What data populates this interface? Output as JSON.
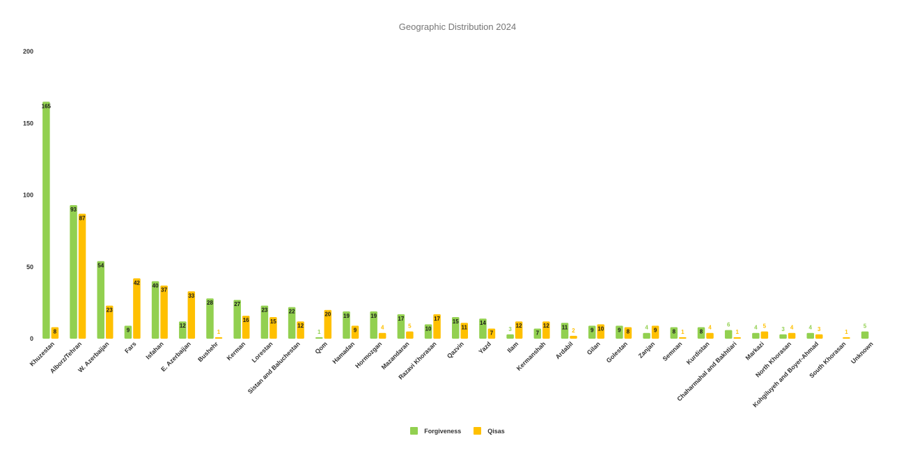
{
  "chart_data": {
    "type": "bar",
    "title": "Geographic Distribution 2024",
    "xlabel": "",
    "ylabel": "",
    "ylim": [
      0,
      200
    ],
    "yticks": [
      0,
      50,
      100,
      150,
      200
    ],
    "grid": false,
    "legend_position": "bottom",
    "categories": [
      "Khuzestan",
      "Alborz/Tehran",
      "W. Azerbaijan",
      "Fars",
      "Isfahan",
      "E. Azerbaijan",
      "Bushehr",
      "Kerman",
      "Lorestan",
      "Sistan and Baluchestan",
      "Qom",
      "Hamadan",
      "Hormozgan",
      "Mazandaran",
      "Razavi Khorasan",
      "Qazvin",
      "Yazd",
      "Ilam",
      "Kermanshah",
      "Ardabil",
      "Gilan",
      "Golestan",
      "Zanjan",
      "Semnan",
      "Kurdistan",
      "Chaharmahal and Bakhtiari",
      "Markazi",
      "North Khorasan",
      "Kohgiluyeh and Boyer-Ahmad",
      "South Khorasan",
      "Unknown"
    ],
    "series": [
      {
        "name": "Forgiveness",
        "color": "#92D050",
        "values": [
          165,
          93,
          54,
          9,
          40,
          12,
          28,
          27,
          23,
          22,
          1,
          19,
          19,
          17,
          10,
          15,
          14,
          3,
          7,
          11,
          9,
          9,
          4,
          8,
          8,
          6,
          4,
          3,
          4,
          null,
          5
        ]
      },
      {
        "name": "Qisas",
        "color": "#FFC000",
        "values": [
          8,
          87,
          23,
          42,
          37,
          33,
          1,
          16,
          15,
          12,
          20,
          9,
          4,
          5,
          17,
          11,
          7,
          12,
          12,
          2,
          10,
          8,
          9,
          1,
          4,
          1,
          5,
          4,
          3,
          1,
          null
        ]
      }
    ]
  }
}
